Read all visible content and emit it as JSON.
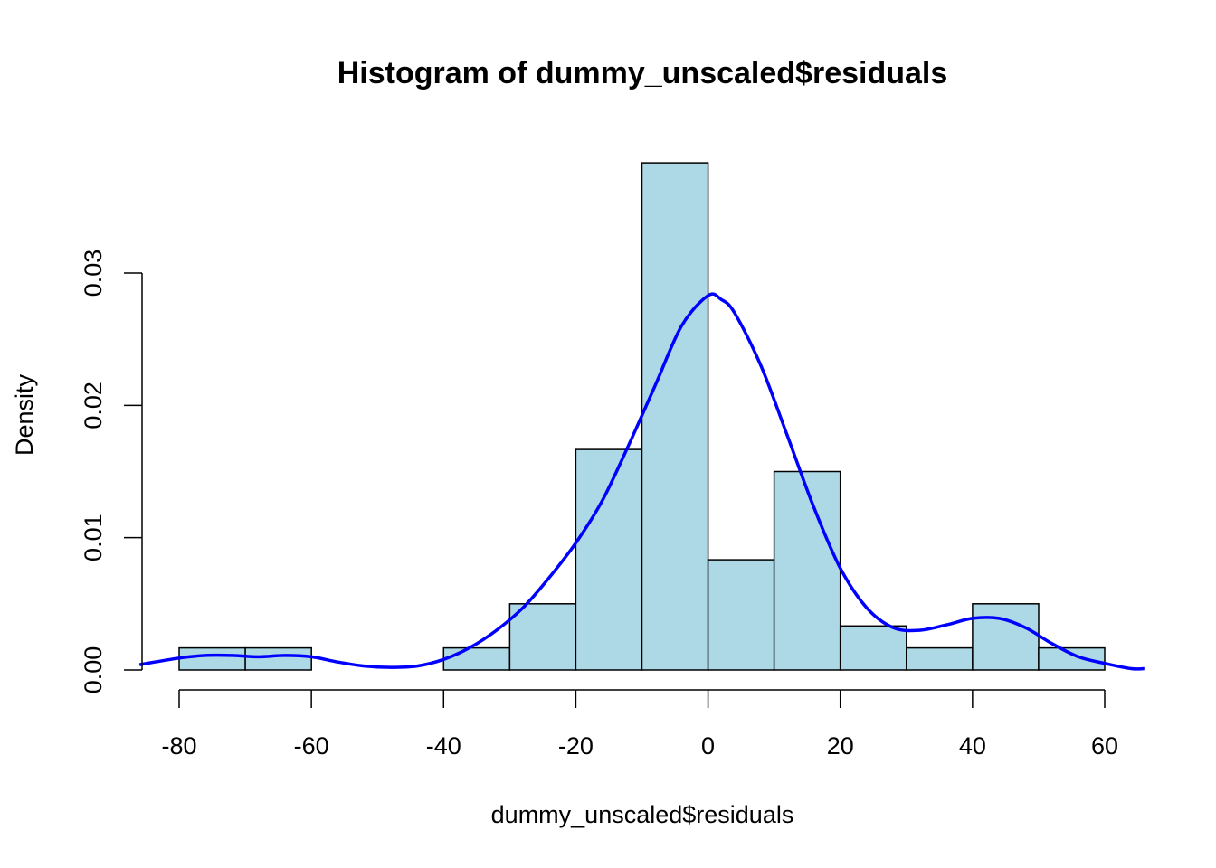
{
  "chart_data": {
    "type": "bar",
    "title": "Histogram of dummy_unscaled$residuals",
    "xlabel": "dummy_unscaled$residuals",
    "ylabel": "Density",
    "xlim": [
      -80,
      60
    ],
    "ylim": [
      0,
      0.03
    ],
    "x_ticks": [
      -80,
      -60,
      -40,
      -20,
      0,
      20,
      40,
      60
    ],
    "y_ticks": [
      0.0,
      0.01,
      0.02,
      0.03
    ],
    "x_tick_labels": [
      "-80",
      "-60",
      "-40",
      "-20",
      "0",
      "20",
      "40",
      "60"
    ],
    "y_tick_labels": [
      "0.00",
      "0.01",
      "0.02",
      "0.03"
    ],
    "bins": [
      {
        "start": -80,
        "end": -70,
        "density": 0.00167
      },
      {
        "start": -70,
        "end": -60,
        "density": 0.00167
      },
      {
        "start": -60,
        "end": -50,
        "density": 0.0
      },
      {
        "start": -50,
        "end": -40,
        "density": 0.0
      },
      {
        "start": -40,
        "end": -30,
        "density": 0.00167
      },
      {
        "start": -30,
        "end": -20,
        "density": 0.005
      },
      {
        "start": -20,
        "end": -10,
        "density": 0.01667
      },
      {
        "start": -10,
        "end": 0,
        "density": 0.03833
      },
      {
        "start": 0,
        "end": 10,
        "density": 0.00833
      },
      {
        "start": 10,
        "end": 20,
        "density": 0.015
      },
      {
        "start": 20,
        "end": 30,
        "density": 0.00333
      },
      {
        "start": 30,
        "end": 40,
        "density": 0.00167
      },
      {
        "start": 40,
        "end": 50,
        "density": 0.005
      },
      {
        "start": 50,
        "end": 60,
        "density": 0.00167
      }
    ],
    "density_curve": {
      "x": [
        -86,
        -80,
        -76,
        -72,
        -68,
        -64,
        -60,
        -56,
        -52,
        -48,
        -44,
        -40,
        -36,
        -32,
        -28,
        -24,
        -20,
        -16,
        -12,
        -8,
        -4,
        0,
        2,
        4,
        8,
        12,
        16,
        20,
        24,
        28,
        32,
        36,
        40,
        44,
        48,
        52,
        56,
        60,
        64,
        66
      ],
      "y": [
        0.0004,
        0.0009,
        0.0011,
        0.0011,
        0.001,
        0.0011,
        0.001,
        0.0006,
        0.0003,
        0.0002,
        0.0003,
        0.0008,
        0.0017,
        0.003,
        0.0047,
        0.007,
        0.0096,
        0.0128,
        0.017,
        0.0215,
        0.026,
        0.0283,
        0.028,
        0.027,
        0.023,
        0.0177,
        0.0123,
        0.0077,
        0.0047,
        0.0032,
        0.003,
        0.0034,
        0.0039,
        0.0039,
        0.0032,
        0.002,
        0.001,
        0.0005,
        0.0001,
        0.0001
      ]
    },
    "colors": {
      "bar_fill": "#add8e6",
      "bar_stroke": "#000000",
      "curve": "#0000ff"
    },
    "legend": "none",
    "grid": false
  }
}
